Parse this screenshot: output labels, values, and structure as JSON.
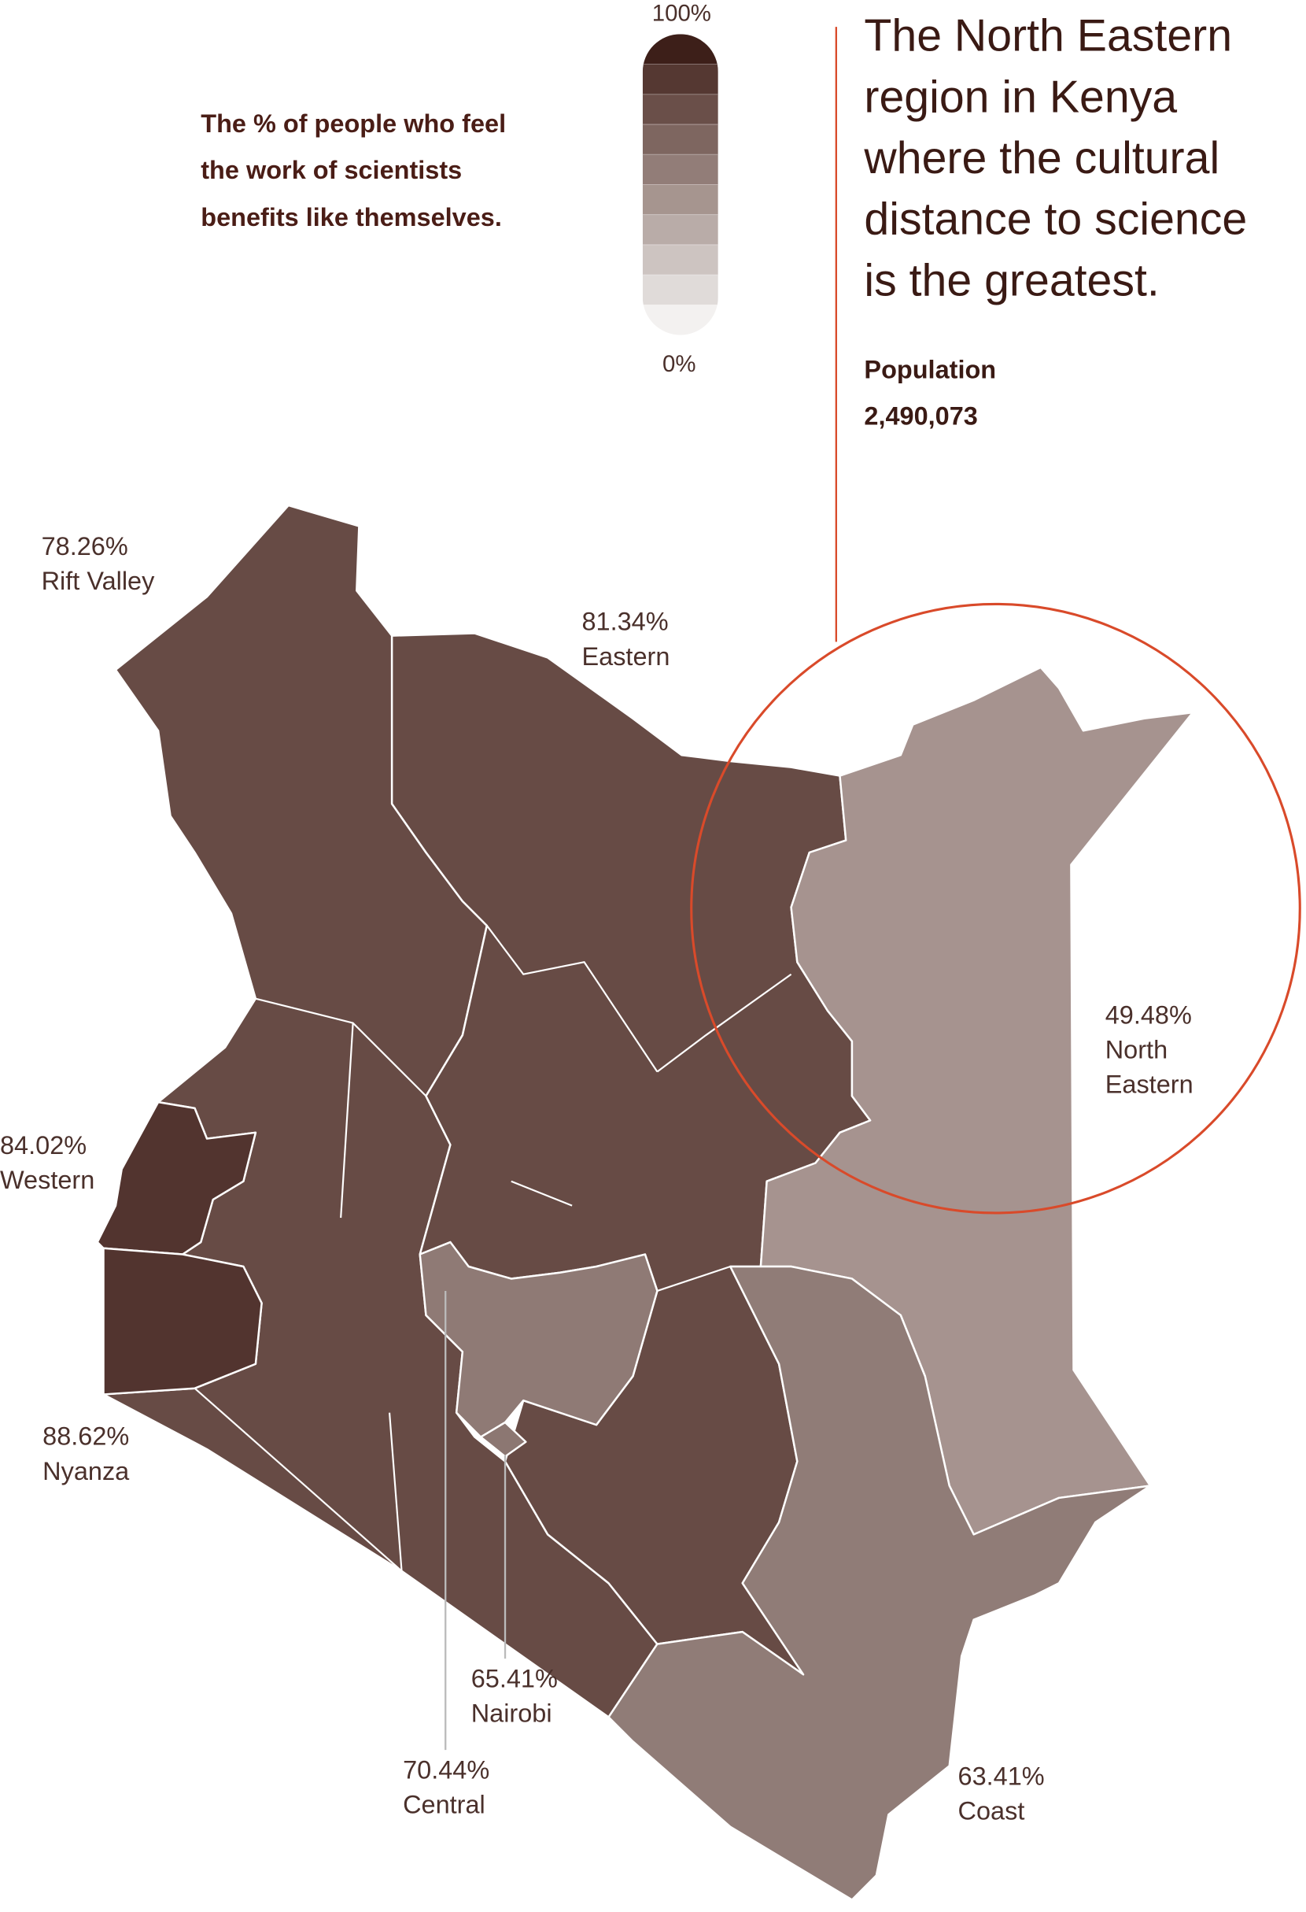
{
  "header": {
    "title_lines": [
      "The % of people who feel",
      "the work of scientists",
      "benefits like themselves."
    ]
  },
  "legend": {
    "max_label": "100%",
    "min_label": "0%",
    "colors": [
      "#3d1f19",
      "#553832",
      "#6a4f49",
      "#7e6660",
      "#927d78",
      "#a6958f",
      "#b9aca8",
      "#cdc4c1",
      "#e0dbd9",
      "#f3f1f0"
    ]
  },
  "callout": {
    "text_lines": [
      "The North Eastern",
      "region in Kenya",
      "where the cultural",
      "distance to science",
      "is the greatest."
    ],
    "population_label": "Population",
    "population_value": "2,490,073"
  },
  "regions": [
    {
      "name_lines": [
        "Rift Valley"
      ],
      "value": 78.26,
      "value_label": "78.26%",
      "color": "#674b45"
    },
    {
      "name_lines": [
        "Eastern"
      ],
      "value": 81.34,
      "value_label": "81.34%",
      "color": "#674b45"
    },
    {
      "name_lines": [
        "North",
        "Eastern"
      ],
      "value": 49.48,
      "value_label": "49.48%",
      "color": "#a6938f"
    },
    {
      "name_lines": [
        "Western"
      ],
      "value": 84.02,
      "value_label": "84.02%",
      "color": "#52342f"
    },
    {
      "name_lines": [
        "Nyanza"
      ],
      "value": 88.62,
      "value_label": "88.62%",
      "color": "#52342f"
    },
    {
      "name_lines": [
        "Nairobi"
      ],
      "value": 65.41,
      "value_label": "65.41%",
      "color": "#8c7772"
    },
    {
      "name_lines": [
        "Central"
      ],
      "value": 70.44,
      "value_label": "70.44%",
      "color": "#8f7a75"
    },
    {
      "name_lines": [
        "Coast"
      ],
      "value": 63.41,
      "value_label": "63.41%",
      "color": "#907c77"
    }
  ]
}
